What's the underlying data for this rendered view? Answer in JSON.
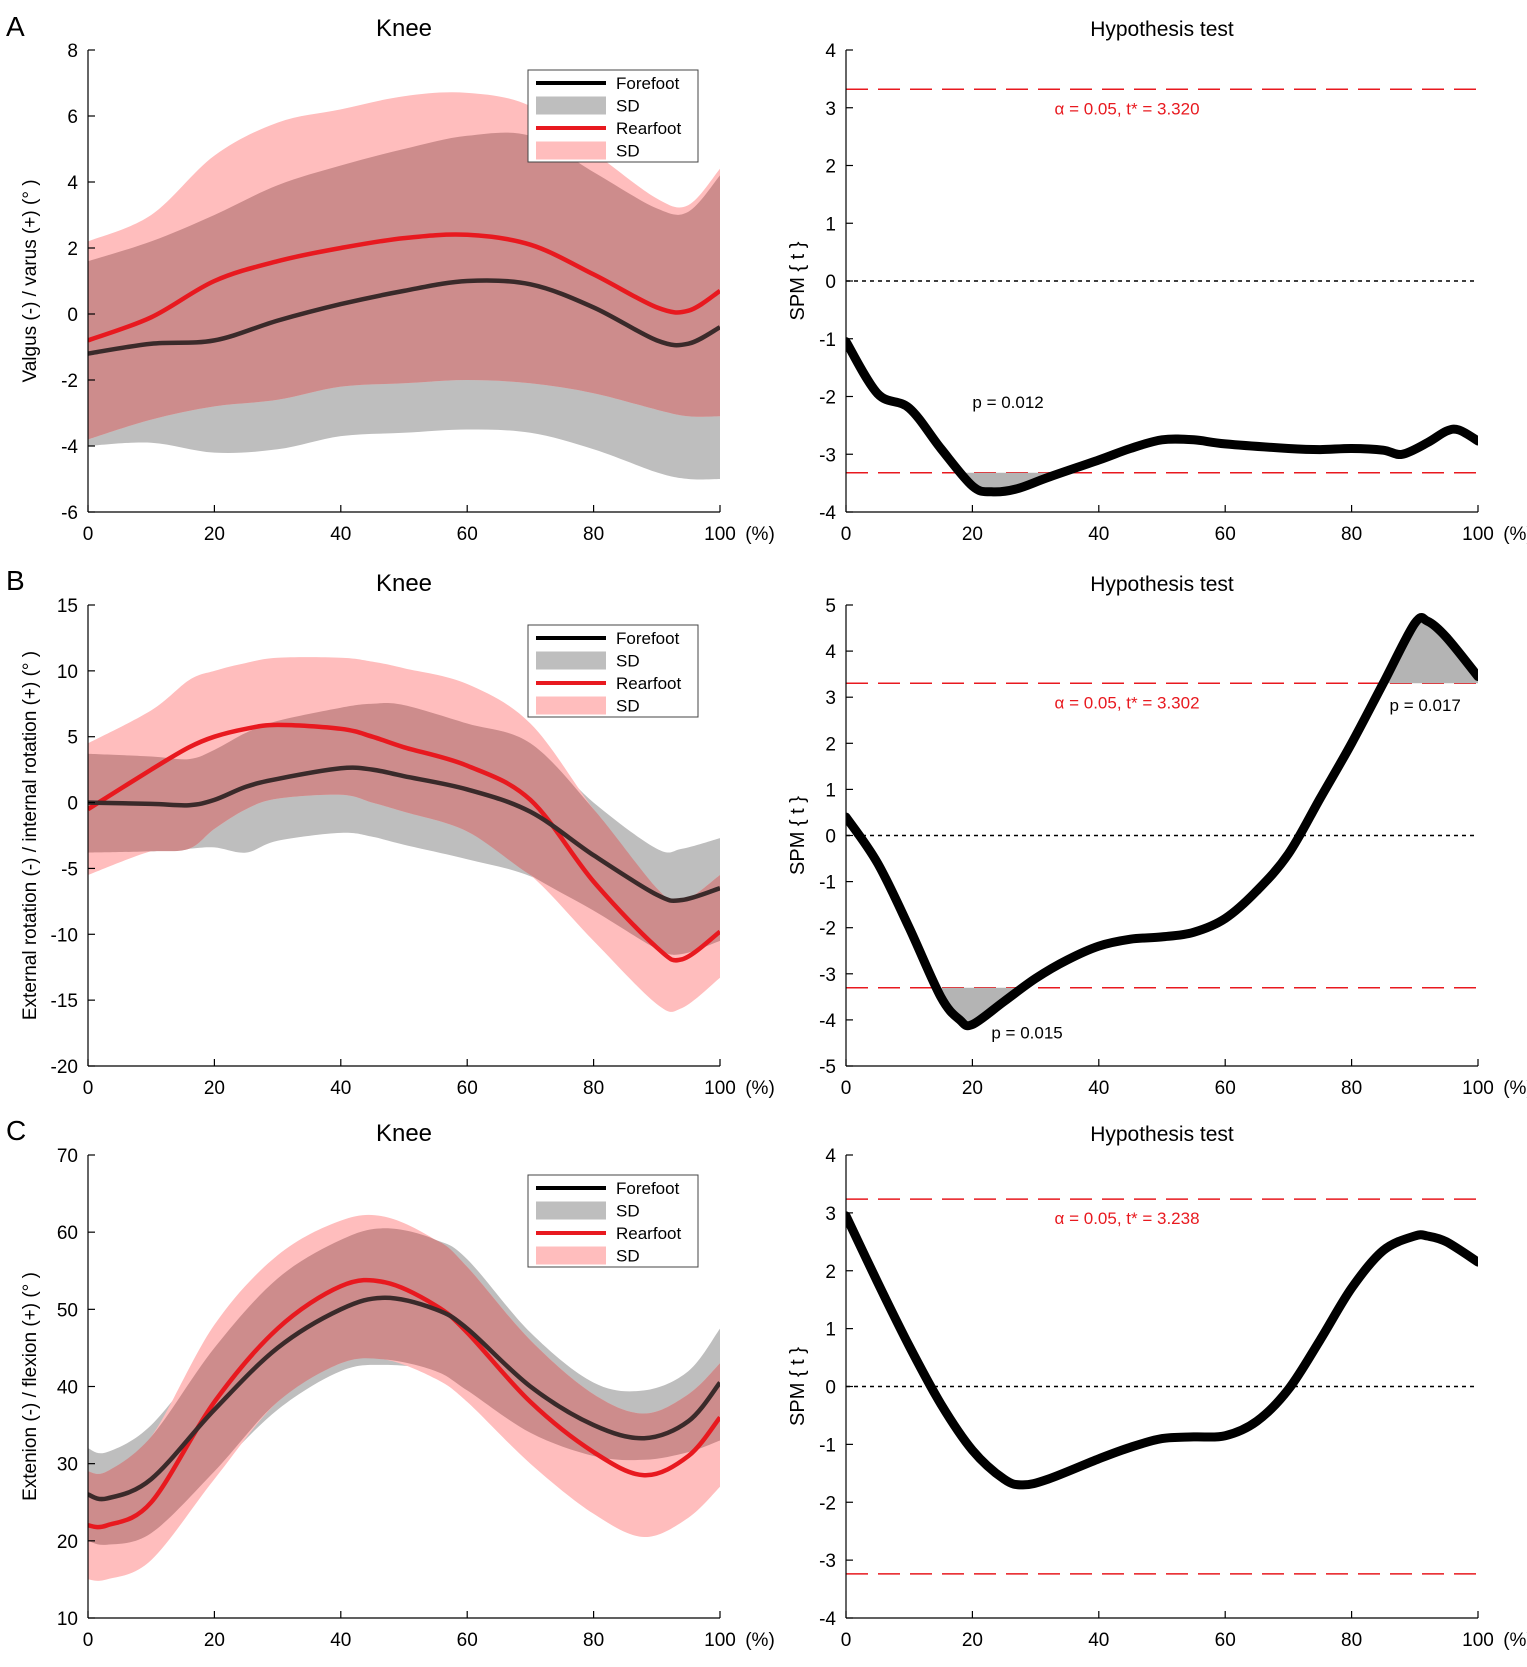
{
  "figure": {
    "x_unit_label": "(%)",
    "colors": {
      "forefoot": "#000000",
      "forefoot_sd": "#bebebe",
      "rearfoot": "#e8191f",
      "rearfoot_sd": "#ffbdbd",
      "overlap": "#cd8c8c",
      "threshold": "#e8191f",
      "zero_line": "#000000"
    }
  },
  "chart_data": [
    {
      "id": "A-left",
      "panel_letter": "A",
      "type": "line",
      "title": "Knee",
      "xlabel": "",
      "ylabel": "Valgus (-) / varus (+) (° )",
      "xlim": [
        0,
        100
      ],
      "ylim": [
        -6,
        8
      ],
      "xticks": [
        0,
        20,
        40,
        60,
        80,
        100
      ],
      "yticks": [
        -6,
        -4,
        -2,
        0,
        2,
        4,
        6,
        8
      ],
      "legend": [
        "Forefoot",
        "SD",
        "Rearfoot",
        "SD"
      ],
      "legend_position": "top-right",
      "x": [
        0,
        10,
        20,
        30,
        40,
        50,
        60,
        70,
        80,
        90,
        95,
        100
      ],
      "series": [
        {
          "name": "Forefoot",
          "mean": [
            -1.2,
            -0.9,
            -0.8,
            -0.2,
            0.3,
            0.7,
            1.0,
            0.9,
            0.2,
            -0.8,
            -0.9,
            -0.4
          ],
          "upper": [
            1.6,
            2.2,
            3.0,
            3.9,
            4.5,
            5.0,
            5.4,
            5.4,
            4.3,
            3.2,
            3.1,
            4.2
          ],
          "lower": [
            -4.0,
            -3.9,
            -4.2,
            -4.1,
            -3.7,
            -3.6,
            -3.5,
            -3.6,
            -4.1,
            -4.8,
            -5.0,
            -5.0
          ]
        },
        {
          "name": "Rearfoot",
          "mean": [
            -0.8,
            -0.1,
            1.0,
            1.6,
            2.0,
            2.3,
            2.4,
            2.1,
            1.2,
            0.2,
            0.1,
            0.7
          ],
          "upper": [
            2.2,
            3.0,
            4.8,
            5.8,
            6.2,
            6.6,
            6.7,
            6.3,
            4.9,
            3.5,
            3.3,
            4.4
          ],
          "lower": [
            -3.8,
            -3.2,
            -2.8,
            -2.6,
            -2.2,
            -2.1,
            -2.0,
            -2.1,
            -2.4,
            -2.9,
            -3.1,
            -3.1
          ]
        }
      ]
    },
    {
      "id": "A-right",
      "type": "line",
      "title": "Hypothesis test",
      "ylabel": "SPM { t }",
      "xlim": [
        0,
        100
      ],
      "ylim": [
        -4,
        4
      ],
      "xticks": [
        0,
        20,
        40,
        60,
        80,
        100
      ],
      "yticks": [
        -4,
        -3,
        -2,
        -1,
        0,
        1,
        2,
        3,
        4
      ],
      "threshold": 3.32,
      "threshold_label": "α = 0.05,        t* = 3.320",
      "x": [
        0,
        5,
        10,
        15,
        20,
        23,
        27,
        32,
        40,
        45,
        50,
        55,
        60,
        70,
        75,
        80,
        85,
        88,
        92,
        95,
        97,
        100
      ],
      "spm_t": [
        -1.05,
        -1.95,
        -2.2,
        -2.9,
        -3.55,
        -3.65,
        -3.6,
        -3.4,
        -3.1,
        -2.9,
        -2.75,
        -2.75,
        -2.82,
        -2.9,
        -2.92,
        -2.9,
        -2.93,
        -3.0,
        -2.8,
        -2.6,
        -2.58,
        -2.77
      ],
      "clusters": [
        {
          "x_start": 18,
          "x_end": 36,
          "side": "lower",
          "p_label": "p  = 0.012",
          "label_x": 20,
          "label_y": -2.2
        }
      ]
    },
    {
      "id": "B-left",
      "panel_letter": "B",
      "type": "line",
      "title": "Knee",
      "ylabel": "External rotation (-) / internal rotation (+) (° )",
      "xlim": [
        0,
        100
      ],
      "ylim": [
        -20,
        15
      ],
      "xticks": [
        0,
        20,
        40,
        60,
        80,
        100
      ],
      "yticks": [
        -20,
        -15,
        -10,
        -5,
        0,
        5,
        10,
        15
      ],
      "legend": [
        "Forefoot",
        "SD",
        "Rearfoot",
        "SD"
      ],
      "legend_position": "top-right",
      "x": [
        0,
        10,
        16,
        20,
        25,
        30,
        40,
        45,
        50,
        60,
        70,
        80,
        90,
        94,
        100
      ],
      "series": [
        {
          "name": "Forefoot",
          "mean": [
            0.0,
            -0.1,
            -0.2,
            0.2,
            1.2,
            1.8,
            2.6,
            2.5,
            2.0,
            1.0,
            -0.7,
            -4.0,
            -7.0,
            -7.4,
            -6.5
          ],
          "upper": [
            3.7,
            3.5,
            3.3,
            4.0,
            5.3,
            6.2,
            7.2,
            7.5,
            7.4,
            6.0,
            4.5,
            0.0,
            -3.5,
            -3.5,
            -2.7
          ],
          "lower": [
            -3.8,
            -3.7,
            -3.5,
            -3.4,
            -3.8,
            -2.9,
            -2.3,
            -2.6,
            -3.2,
            -4.3,
            -5.6,
            -8.2,
            -11.1,
            -11.5,
            -10.5
          ]
        },
        {
          "name": "Rearfoot",
          "mean": [
            -0.5,
            2.5,
            4.2,
            5.0,
            5.6,
            5.9,
            5.6,
            5.0,
            4.2,
            2.8,
            0.2,
            -6.0,
            -11.0,
            -11.9,
            -9.8
          ],
          "upper": [
            4.5,
            7.0,
            9.3,
            10.0,
            10.6,
            11.0,
            11.0,
            10.7,
            10.2,
            9.0,
            6.0,
            -0.5,
            -6.5,
            -7.5,
            -5.5
          ],
          "lower": [
            -5.5,
            -3.7,
            -3.5,
            -2.0,
            -0.5,
            0.3,
            0.6,
            0.0,
            -0.7,
            -2.2,
            -5.5,
            -10.5,
            -15.3,
            -15.6,
            -13.3
          ]
        }
      ]
    },
    {
      "id": "B-right",
      "type": "line",
      "title": "Hypothesis test",
      "ylabel": "SPM { t }",
      "xlim": [
        0,
        100
      ],
      "ylim": [
        -5,
        5
      ],
      "xticks": [
        0,
        20,
        40,
        60,
        80,
        100
      ],
      "yticks": [
        -5,
        -4,
        -3,
        -2,
        -1,
        0,
        1,
        2,
        3,
        4,
        5
      ],
      "threshold": 3.302,
      "threshold_label": "α = 0.05,        t* = 3.302",
      "x": [
        0,
        5,
        10,
        15,
        18,
        20,
        25,
        30,
        35,
        40,
        45,
        50,
        55,
        60,
        65,
        70,
        75,
        80,
        85,
        90,
        92,
        95,
        100
      ],
      "spm_t": [
        0.4,
        -0.6,
        -2.0,
        -3.5,
        -4.0,
        -4.1,
        -3.6,
        -3.1,
        -2.7,
        -2.4,
        -2.25,
        -2.2,
        -2.1,
        -1.8,
        -1.2,
        -0.4,
        0.8,
        2.0,
        3.3,
        4.6,
        4.65,
        4.3,
        3.45
      ],
      "clusters": [
        {
          "x_start": 13,
          "x_end": 28,
          "side": "lower",
          "p_label": "p  = 0.015",
          "label_x": 23,
          "label_y": -4.4
        },
        {
          "x_start": 85,
          "x_end": 100,
          "side": "upper",
          "p_label": "p  = 0.017",
          "label_x": 86,
          "label_y": 2.7
        }
      ]
    },
    {
      "id": "C-left",
      "panel_letter": "C",
      "type": "line",
      "title": "Knee",
      "ylabel": "Extenion (-) / flexion (+) (° )",
      "xlim": [
        0,
        100
      ],
      "ylim": [
        10,
        70
      ],
      "xticks": [
        0,
        20,
        40,
        60,
        80,
        100
      ],
      "yticks": [
        10,
        20,
        30,
        40,
        50,
        60,
        70
      ],
      "legend": [
        "Forefoot",
        "SD",
        "Rearfoot",
        "SD"
      ],
      "legend_position": "top-right",
      "x": [
        0,
        3,
        10,
        20,
        30,
        40,
        47,
        55,
        60,
        70,
        80,
        88,
        95,
        100
      ],
      "series": [
        {
          "name": "Forefoot",
          "mean": [
            26.0,
            25.5,
            28.0,
            37.0,
            45.0,
            50.0,
            51.5,
            50.0,
            47.5,
            40.0,
            35.0,
            33.3,
            35.5,
            40.5
          ],
          "upper": [
            32.0,
            31.5,
            35.0,
            45.0,
            54.0,
            59.0,
            60.5,
            59.0,
            56.5,
            47.0,
            40.5,
            39.5,
            42.0,
            47.5
          ],
          "lower": [
            20.0,
            19.5,
            21.0,
            29.0,
            37.0,
            42.0,
            42.8,
            42.0,
            39.5,
            34.0,
            31.0,
            30.5,
            31.5,
            33.0
          ]
        },
        {
          "name": "Rearfoot",
          "mean": [
            22.0,
            22.0,
            25.0,
            38.0,
            47.5,
            53.0,
            53.5,
            50.5,
            47.0,
            38.0,
            31.5,
            28.5,
            31.0,
            36.0
          ],
          "upper": [
            29.0,
            29.0,
            33.5,
            48.0,
            57.0,
            61.5,
            62.0,
            59.0,
            55.5,
            46.0,
            39.0,
            36.5,
            39.0,
            43.0
          ],
          "lower": [
            15.0,
            15.0,
            17.5,
            28.0,
            38.0,
            43.0,
            43.5,
            41.0,
            38.0,
            30.0,
            23.5,
            20.5,
            23.0,
            27.0
          ]
        }
      ]
    },
    {
      "id": "C-right",
      "type": "line",
      "title": "Hypothesis test",
      "ylabel": "SPM { t }",
      "xlim": [
        0,
        100
      ],
      "ylim": [
        -4,
        4
      ],
      "xticks": [
        0,
        20,
        40,
        60,
        80,
        100
      ],
      "yticks": [
        -4,
        -3,
        -2,
        -1,
        0,
        1,
        2,
        3,
        4
      ],
      "threshold": 3.238,
      "threshold_label": "α = 0.05,        t* = 3.238",
      "x": [
        0,
        5,
        10,
        15,
        20,
        25,
        28,
        32,
        40,
        45,
        50,
        55,
        60,
        65,
        70,
        75,
        80,
        85,
        90,
        92,
        95,
        100
      ],
      "spm_t": [
        2.95,
        1.8,
        0.7,
        -0.3,
        -1.1,
        -1.6,
        -1.7,
        -1.6,
        -1.25,
        -1.05,
        -0.9,
        -0.87,
        -0.85,
        -0.6,
        -0.05,
        0.8,
        1.7,
        2.35,
        2.6,
        2.6,
        2.5,
        2.15
      ],
      "clusters": []
    }
  ]
}
